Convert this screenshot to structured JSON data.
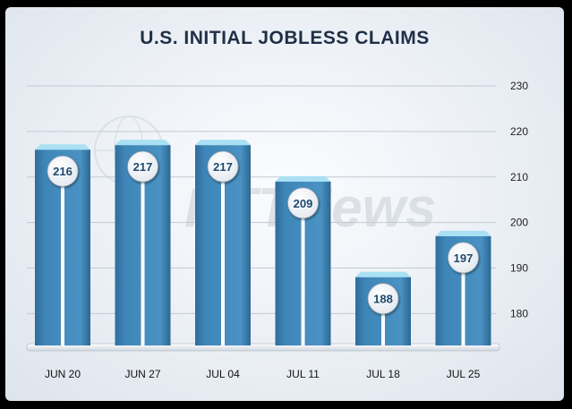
{
  "watermark": "RTTNews",
  "chart_data": {
    "type": "bar",
    "title": "U.S. INITIAL JOBLESS CLAIMS",
    "xlabel": "",
    "ylabel": "",
    "categories": [
      "JUN 20",
      "JUN 27",
      "JUL 04",
      "JUL 11",
      "JUL 18",
      "JUL 25"
    ],
    "values": [
      216,
      217,
      217,
      209,
      188,
      197
    ],
    "y_ticks": [
      180,
      190,
      200,
      210,
      220,
      230
    ],
    "ylim": [
      173,
      230
    ],
    "y_axis_position": "right",
    "grid": true,
    "legend": "none",
    "colors": {
      "bar": "#3f86b8",
      "bar_dark": "#2f6e9c",
      "bar_top": "#a9e0f3",
      "grid": "#c3cad3",
      "floor": "#ffffff",
      "label_circle": "#ffffff",
      "label_text": "#1d4a6e"
    }
  }
}
